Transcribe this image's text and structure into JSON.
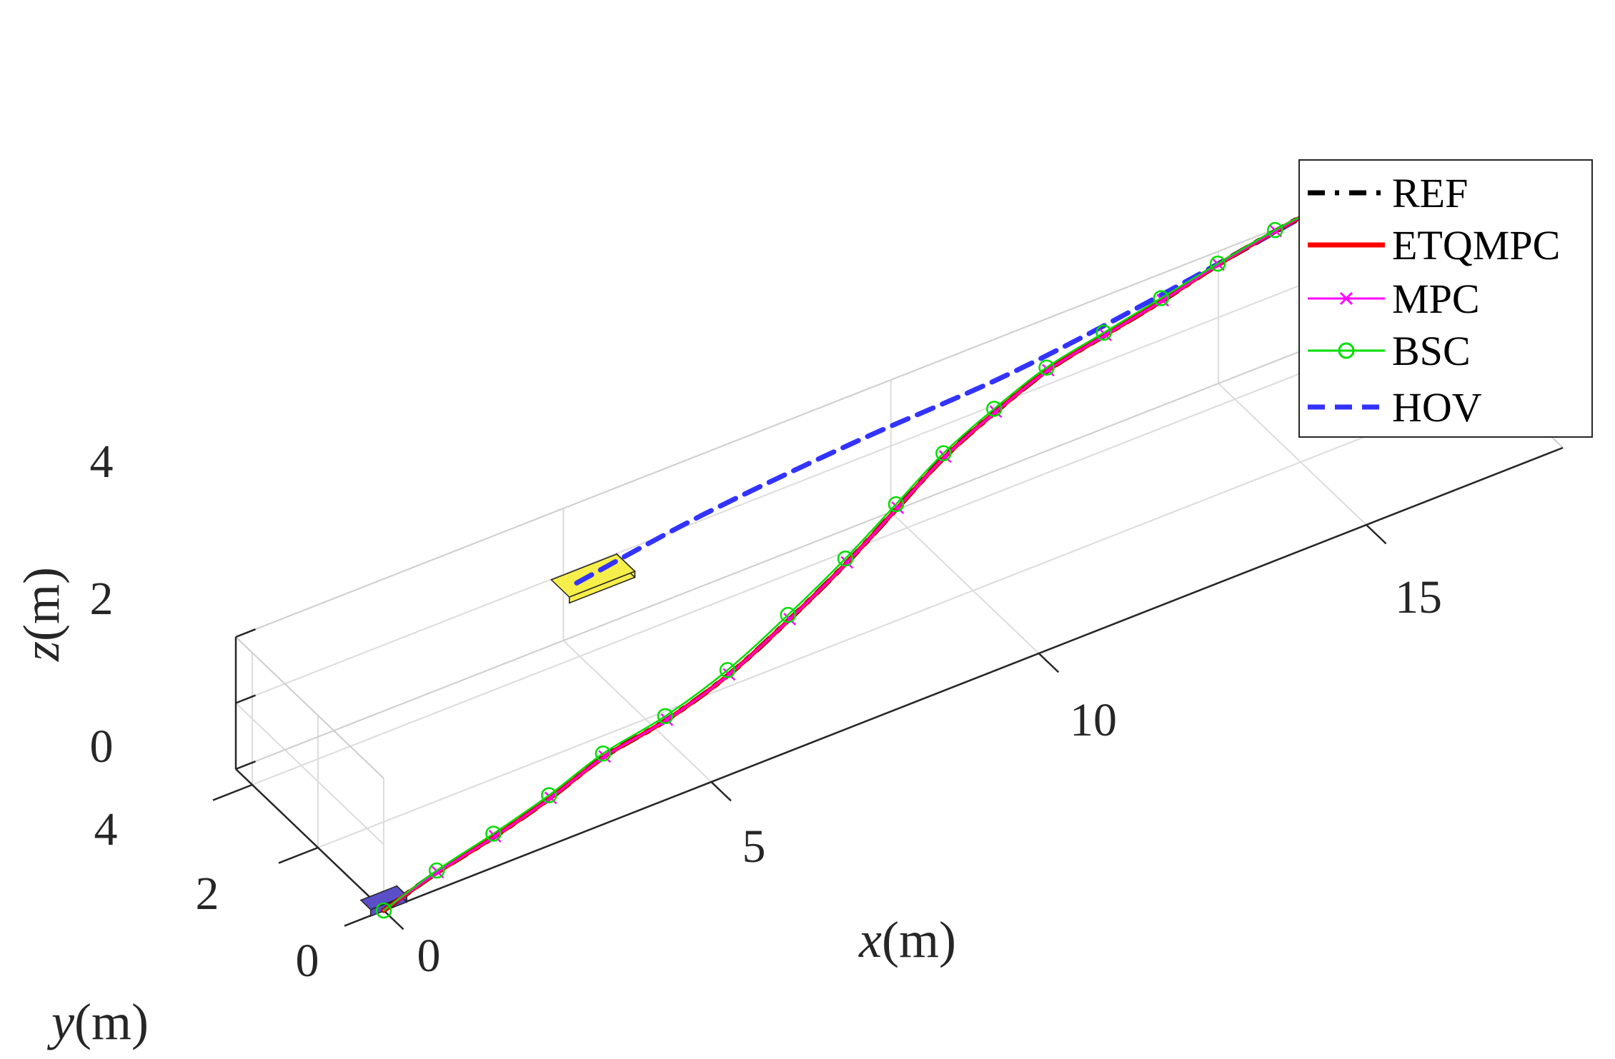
{
  "chart_data": {
    "type": "line",
    "projection": "3d",
    "title": "",
    "axes": {
      "x": {
        "label_var": "x",
        "label_unit": "(m)",
        "ticks": [
          "0",
          "5",
          "10",
          "15"
        ],
        "range": [
          0,
          18
        ]
      },
      "y": {
        "label_var": "y",
        "label_unit": "(m)",
        "ticks": [
          "0",
          "2",
          "4"
        ],
        "range": [
          0,
          4.5
        ]
      },
      "z": {
        "label_var": "z",
        "label_unit": "(m)",
        "ticks": [
          "0",
          "2",
          "4"
        ],
        "range": [
          0,
          4
        ]
      }
    },
    "grid": true,
    "legend": {
      "placement": "top-right",
      "entries": [
        {
          "name": "REF",
          "color": "#000000",
          "style": "dash-dot",
          "marker": "none"
        },
        {
          "name": "ETQMPC",
          "color": "#ff0000",
          "style": "solid",
          "marker": "none"
        },
        {
          "name": "MPC",
          "color": "#ff00ff",
          "style": "solid",
          "marker": "x"
        },
        {
          "name": "BSC",
          "color": "#00dd00",
          "style": "solid",
          "marker": "o"
        },
        {
          "name": "HOV",
          "color": "#3333ff",
          "style": "dashed",
          "marker": "none"
        }
      ]
    },
    "series": [
      {
        "name": "REF",
        "points": [
          [
            0,
            0,
            0
          ],
          [
            1,
            0.35,
            0.05
          ],
          [
            2,
            0.6,
            0.12
          ],
          [
            3,
            0.9,
            0.22
          ],
          [
            4,
            1.25,
            0.36
          ],
          [
            5,
            1.35,
            0.6
          ],
          [
            6,
            1.45,
            1.1
          ],
          [
            7,
            1.6,
            1.85
          ],
          [
            8,
            1.85,
            2.55
          ],
          [
            9,
            2.3,
            3.0
          ],
          [
            10,
            2.85,
            3.25
          ],
          [
            11,
            3.3,
            3.4
          ],
          [
            12,
            3.7,
            3.5
          ],
          [
            13,
            3.95,
            3.55
          ],
          [
            14,
            4.2,
            3.58
          ],
          [
            15,
            4.5,
            3.6
          ],
          [
            16,
            4.75,
            3.6
          ],
          [
            17,
            4.95,
            3.6
          ]
        ]
      },
      {
        "name": "ETQMPC",
        "points": [
          [
            0,
            0,
            0
          ],
          [
            1,
            0.35,
            0.05
          ],
          [
            2,
            0.6,
            0.12
          ],
          [
            3,
            0.9,
            0.22
          ],
          [
            4,
            1.25,
            0.36
          ],
          [
            5,
            1.35,
            0.6
          ],
          [
            6,
            1.45,
            1.1
          ],
          [
            7,
            1.6,
            1.85
          ],
          [
            8,
            1.85,
            2.55
          ],
          [
            9,
            2.3,
            3.0
          ],
          [
            10,
            2.85,
            3.25
          ],
          [
            11,
            3.3,
            3.4
          ],
          [
            12,
            3.7,
            3.5
          ],
          [
            13,
            3.95,
            3.55
          ],
          [
            14,
            4.2,
            3.58
          ],
          [
            15,
            4.5,
            3.6
          ],
          [
            16,
            4.75,
            3.6
          ],
          [
            17,
            4.95,
            3.6
          ]
        ]
      },
      {
        "name": "MPC",
        "points": [
          [
            0,
            0,
            0
          ],
          [
            1,
            0.35,
            0.05
          ],
          [
            2,
            0.6,
            0.12
          ],
          [
            3,
            0.9,
            0.22
          ],
          [
            4,
            1.25,
            0.36
          ],
          [
            5,
            1.35,
            0.6
          ],
          [
            6,
            1.45,
            1.1
          ],
          [
            7,
            1.6,
            1.85
          ],
          [
            8,
            1.85,
            2.55
          ],
          [
            9,
            2.3,
            3.0
          ],
          [
            10,
            2.85,
            3.25
          ],
          [
            11,
            3.3,
            3.4
          ],
          [
            12,
            3.7,
            3.5
          ],
          [
            13,
            3.95,
            3.55
          ],
          [
            14,
            4.2,
            3.58
          ],
          [
            15,
            4.5,
            3.6
          ],
          [
            16,
            4.75,
            3.6
          ],
          [
            17,
            4.95,
            3.6
          ]
        ]
      },
      {
        "name": "BSC",
        "points": [
          [
            0,
            0,
            0
          ],
          [
            1,
            0.38,
            0.07
          ],
          [
            2,
            0.65,
            0.15
          ],
          [
            3,
            0.95,
            0.25
          ],
          [
            4,
            1.3,
            0.4
          ],
          [
            5,
            1.4,
            0.66
          ],
          [
            6,
            1.5,
            1.18
          ],
          [
            7,
            1.65,
            1.93
          ],
          [
            8,
            1.9,
            2.62
          ],
          [
            9,
            2.35,
            3.06
          ],
          [
            10,
            2.9,
            3.3
          ],
          [
            11,
            3.35,
            3.44
          ],
          [
            12,
            3.75,
            3.53
          ],
          [
            13,
            4.0,
            3.57
          ],
          [
            14,
            4.25,
            3.6
          ],
          [
            15,
            4.52,
            3.61
          ],
          [
            16,
            4.77,
            3.61
          ],
          [
            17,
            4.95,
            3.6
          ]
        ]
      },
      {
        "name": "HOV",
        "points": [
          [
            4.3,
            2.7,
            4.0
          ],
          [
            6.5,
            3.2,
            3.9
          ],
          [
            9.0,
            3.6,
            3.75
          ],
          [
            11.5,
            3.85,
            3.65
          ],
          [
            14.0,
            4.3,
            3.62
          ],
          [
            17.0,
            4.95,
            3.6
          ]
        ]
      }
    ]
  }
}
